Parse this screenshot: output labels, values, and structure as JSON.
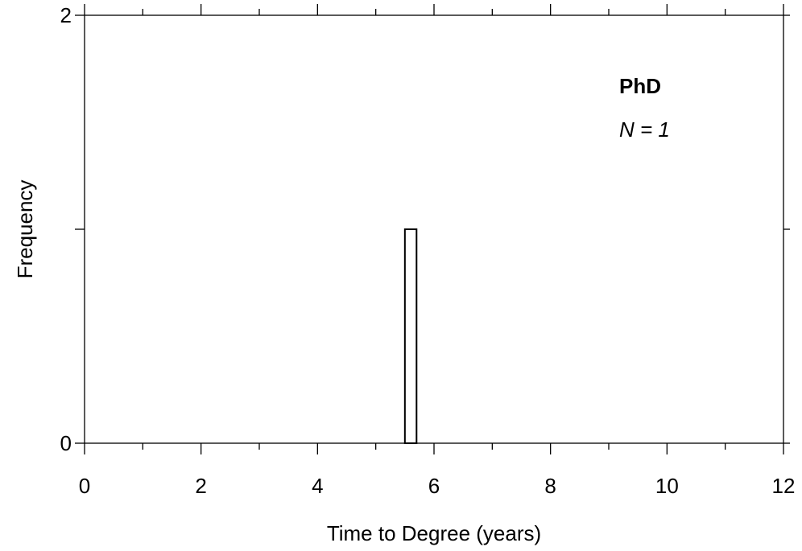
{
  "chart_data": {
    "type": "bar",
    "xlabel": "Time to Degree (years)",
    "ylabel": "Frequency",
    "xlim": [
      0,
      12
    ],
    "ylim": [
      0,
      2
    ],
    "x_major_ticks": [
      0,
      2,
      4,
      6,
      8,
      10,
      12
    ],
    "x_minor_ticks": [
      1,
      3,
      5,
      7,
      9,
      11
    ],
    "y_ticks": [
      0,
      1,
      2
    ],
    "y_tick_labels": [
      "0",
      "",
      "2"
    ],
    "bins": [
      {
        "x0": 5.5,
        "x1": 5.7,
        "count": 1
      }
    ],
    "annotations": {
      "group": "PhD",
      "n_text": "N = 1"
    },
    "grid": false
  }
}
